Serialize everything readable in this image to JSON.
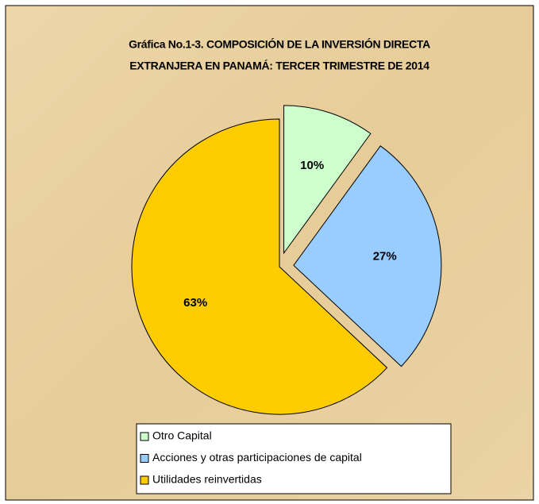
{
  "chart_data": {
    "type": "pie",
    "title": [
      "Gráfica No.1-3. COMPOSICIÓN DE LA INVERSIÓN DIRECTA",
      "EXTRANJERA EN PANAMÁ: TERCER TRIMESTRE DE 2014"
    ],
    "categories": [
      "Otro Capital",
      "Acciones y otras participaciones de capital",
      "Utilidades reinvertidas"
    ],
    "values": [
      10,
      27,
      63
    ],
    "value_labels": [
      "10%",
      "27%",
      "63%"
    ],
    "colors": [
      "#ccffcc",
      "#99ccff",
      "#ffcc00"
    ],
    "exploded": [
      true,
      true,
      false
    ],
    "legend": "bottom"
  }
}
